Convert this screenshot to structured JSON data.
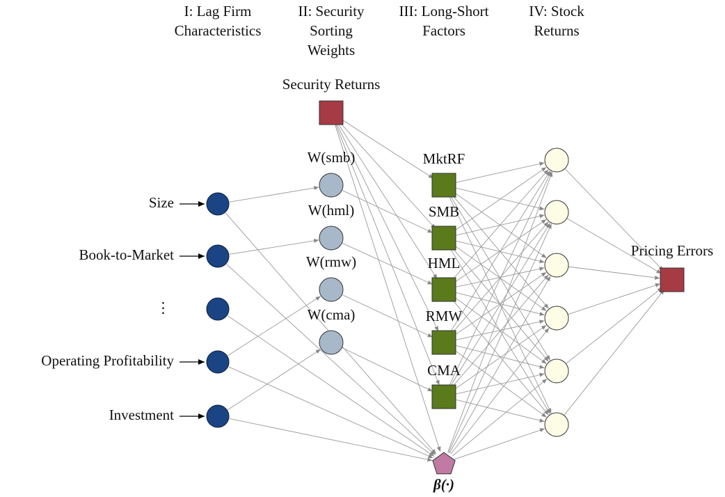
{
  "columns": [
    [
      "I: Lag Firm",
      "Characteristics"
    ],
    [
      "II: Security",
      "Sorting",
      "Weights"
    ],
    [
      "III: Long-Short",
      "Factors"
    ],
    [
      "IV: Stock",
      "Returns"
    ]
  ],
  "inputs": [
    "Size",
    "Book-to-Market",
    "⋮",
    "Operating Profitability",
    "Investment"
  ],
  "weights": [
    "W(smb)",
    "W(hml)",
    "W(rmw)",
    "W(cma)"
  ],
  "security_returns": "Security Returns",
  "factors": [
    "MktRF",
    "SMB",
    "HML",
    "RMW",
    "CMA"
  ],
  "pricing_errors": "Pricing Errors",
  "beta": "β(·)"
}
